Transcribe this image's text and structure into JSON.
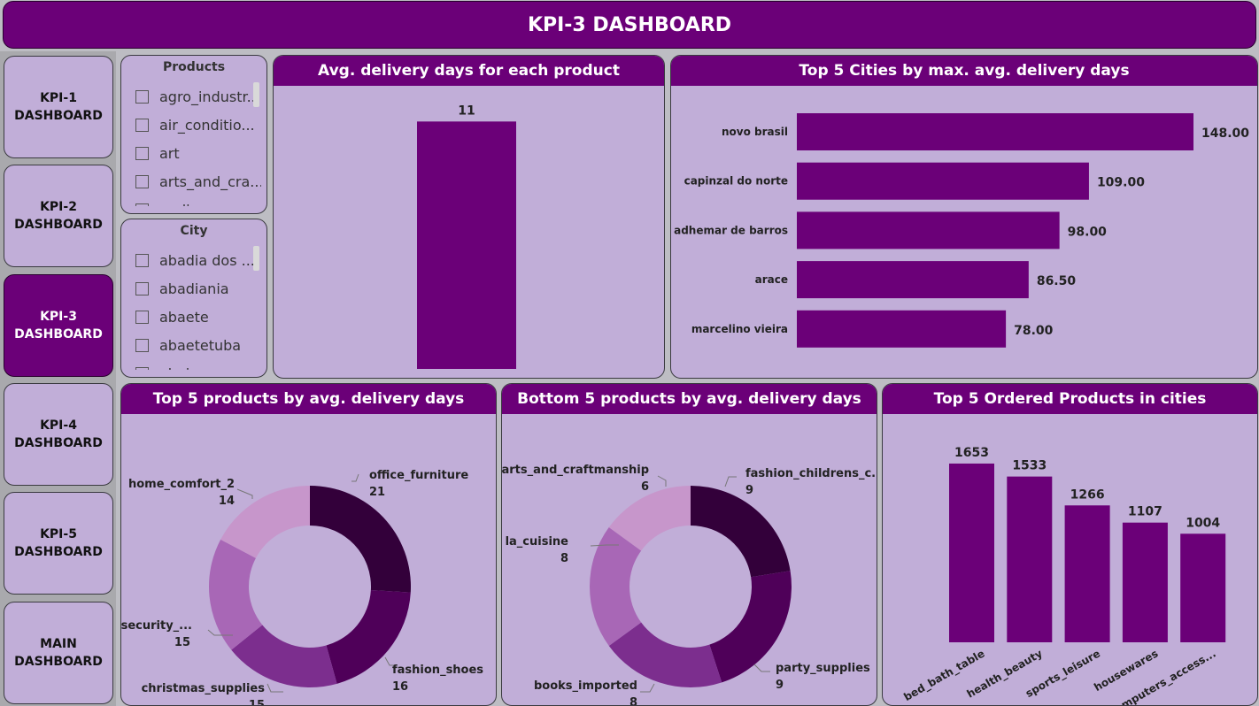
{
  "header": {
    "title": "KPI-3 DASHBOARD"
  },
  "nav": [
    {
      "line1": "KPI-1",
      "line2": "DASHBOARD",
      "active": false
    },
    {
      "line1": "KPI-2",
      "line2": "DASHBOARD",
      "active": false
    },
    {
      "line1": "KPI-3",
      "line2": "DASHBOARD",
      "active": true
    },
    {
      "line1": "KPI-4",
      "line2": "DASHBOARD",
      "active": false
    },
    {
      "line1": "KPI-5",
      "line2": "DASHBOARD",
      "active": false
    },
    {
      "line1": "MAIN",
      "line2": "DASHBOARD",
      "active": false
    }
  ],
  "slicers": {
    "products": {
      "title": "Products",
      "items": [
        "agro_industr...",
        "air_conditio...",
        "art",
        "arts_and_cra...",
        "audio"
      ]
    },
    "city": {
      "title": "City",
      "items": [
        "abadia dos ...",
        "abadiania",
        "abaete",
        "abaetetuba",
        "abaiara"
      ]
    }
  },
  "colors": {
    "brand": "#6b0078",
    "panel_bg": "#c1aed8",
    "donut": [
      "#33003a",
      "#4f0059",
      "#7c2e8e",
      "#a867b6",
      "#c796cb"
    ]
  },
  "chart_data": [
    {
      "id": "avg_delivery",
      "type": "bar",
      "title": "Avg. delivery days for each product",
      "categories": [
        ""
      ],
      "values": [
        11
      ],
      "ylim": [
        0,
        11.8
      ]
    },
    {
      "id": "top_cities",
      "type": "bar",
      "orientation": "horizontal",
      "title": "Top 5 Cities by max. avg. delivery days",
      "categories": [
        "novo brasil",
        "capinzal do norte",
        "adhemar de barros",
        "arace",
        "marcelino vieira"
      ],
      "values": [
        148.0,
        109.0,
        98.0,
        86.5,
        78.0
      ],
      "labels": [
        "148.00",
        "109.00",
        "98.00",
        "86.50",
        "78.00"
      ],
      "xlim": [
        0,
        148
      ]
    },
    {
      "id": "top_products",
      "type": "pie",
      "title": "Top 5 products by avg. delivery days",
      "categories": [
        "office_furniture",
        "fashion_shoes",
        "christmas_supplies",
        "security_...",
        "home_comfort_2"
      ],
      "values": [
        21,
        16,
        15,
        15,
        14
      ]
    },
    {
      "id": "bottom_products",
      "type": "pie",
      "title": "Bottom 5 products by avg. delivery days",
      "categories": [
        "fashion_childrens_c...",
        "party_supplies",
        "books_imported",
        "la_cuisine",
        "arts_and_craftmanship"
      ],
      "values": [
        9,
        9,
        8,
        8,
        6
      ]
    },
    {
      "id": "top_ordered",
      "type": "bar",
      "title": "Top 5 Ordered Products in cities",
      "categories": [
        "bed_bath_table",
        "health_beauty",
        "sports_leisure",
        "housewares",
        "computers_access..."
      ],
      "values": [
        1653,
        1533,
        1266,
        1107,
        1004
      ],
      "ylim": [
        0,
        1800
      ]
    }
  ]
}
